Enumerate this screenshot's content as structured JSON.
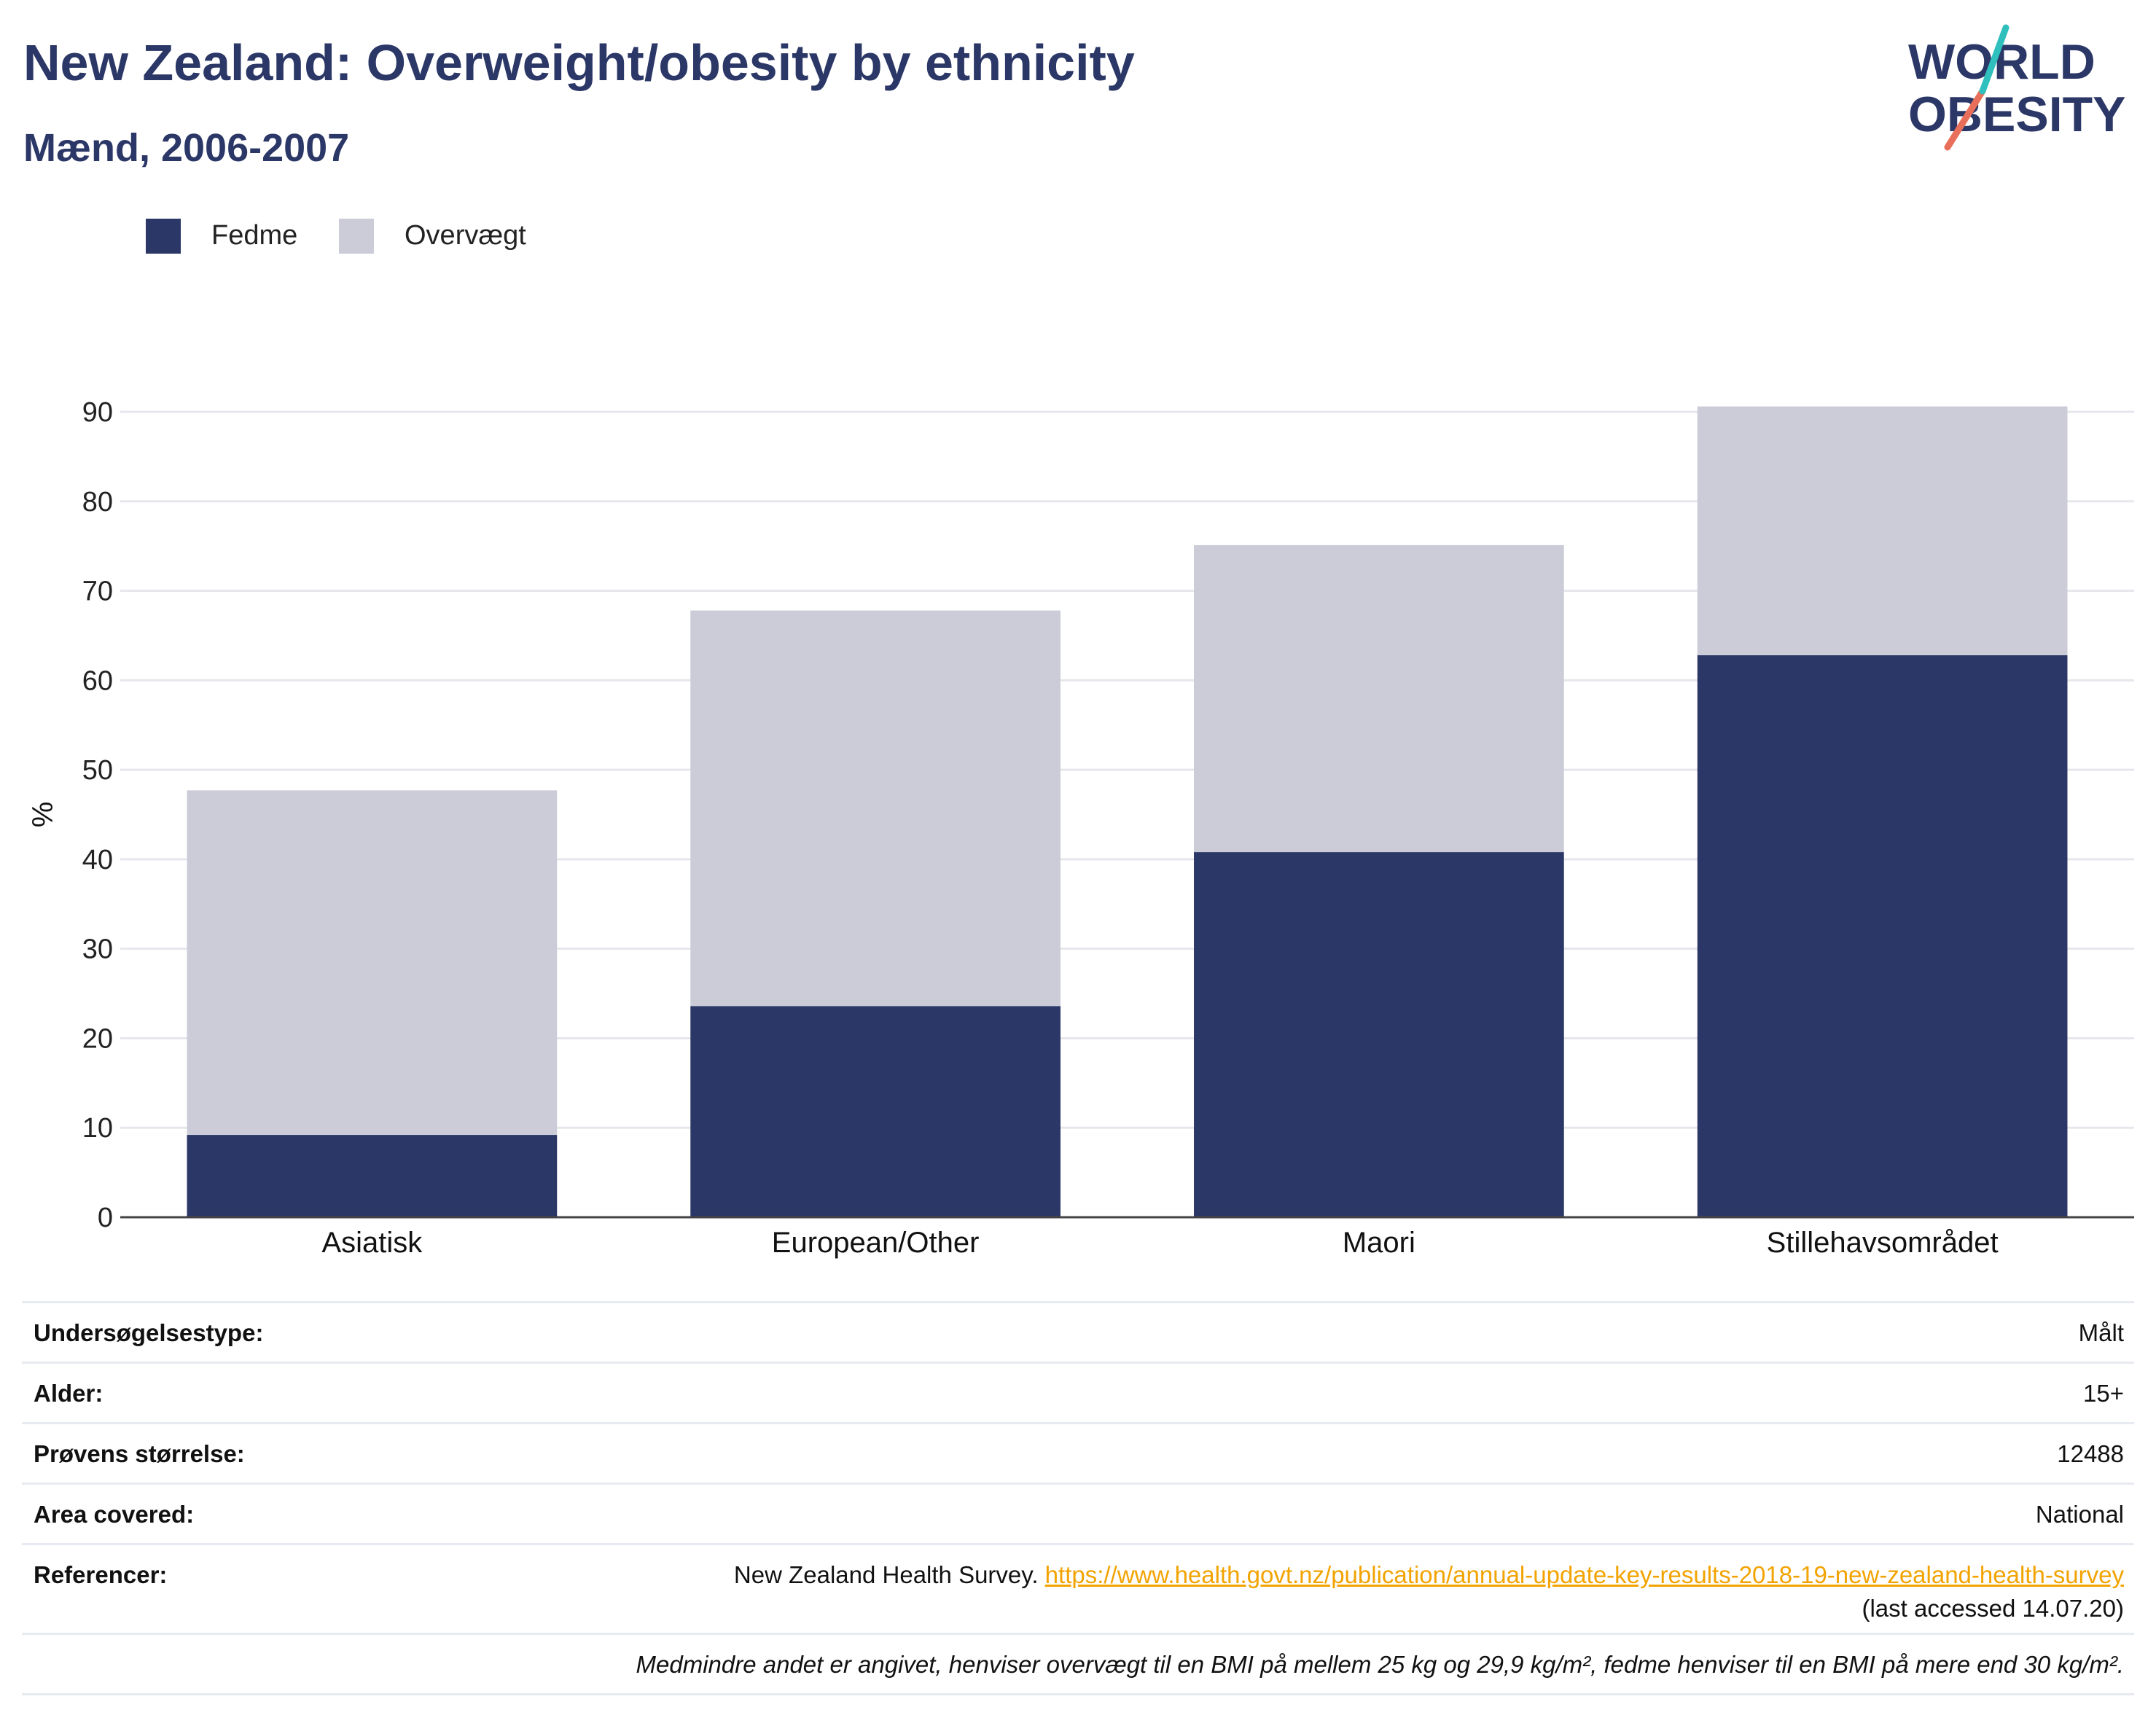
{
  "title": "New Zealand: Overweight/obesity by ethnicity",
  "subtitle": "Mænd, 2006-2007",
  "logo": {
    "line1": "WORLD",
    "line2": "OBESITY"
  },
  "colors": {
    "fedme": "#2b3766",
    "overvaegt": "#cbccd8",
    "title": "#2b3766",
    "link": "#f2a300",
    "logo_teal": "#2fbfbd",
    "logo_coral": "#e8705a"
  },
  "legend": [
    {
      "label": "Fedme",
      "color": "#2b3766"
    },
    {
      "label": "Overvægt",
      "color": "#cbccd8"
    }
  ],
  "chart_data": {
    "type": "bar",
    "stacked": true,
    "categories": [
      "Asiatisk",
      "European/Other",
      "Maori",
      "Stillehavsområdet"
    ],
    "series": [
      {
        "name": "Fedme",
        "values": [
          9.2,
          23.6,
          40.8,
          62.8
        ]
      },
      {
        "name": "Overvægt",
        "values": [
          38.5,
          44.2,
          34.3,
          27.8
        ]
      }
    ],
    "ylabel": "%",
    "ylim": [
      0,
      90
    ],
    "yticks": [
      0,
      10,
      20,
      30,
      40,
      50,
      60,
      70,
      80,
      90
    ],
    "grid": true,
    "legend_position": "top-left"
  },
  "info": {
    "survey_type_label": "Undersøgelsestype:",
    "survey_type_value": "Målt",
    "age_label": "Alder:",
    "age_value": "15+",
    "sample_label": "Prøvens størrelse:",
    "sample_value": "12488",
    "area_label": "Area covered:",
    "area_value": "National",
    "ref_label": "Referencer:",
    "ref_text": "New Zealand Health Survey. ",
    "ref_link": "https://www.health.govt.nz/publication/annual-update-key-results-2018-19-new-zealand-health-survey",
    "ref_accessed": "(last accessed 14.07.20)",
    "note": "Medmindre andet er angivet, henviser overvægt til en BMI på mellem 25 kg og 29,9 kg/m², fedme henviser til en BMI på mere end 30 kg/m²."
  }
}
